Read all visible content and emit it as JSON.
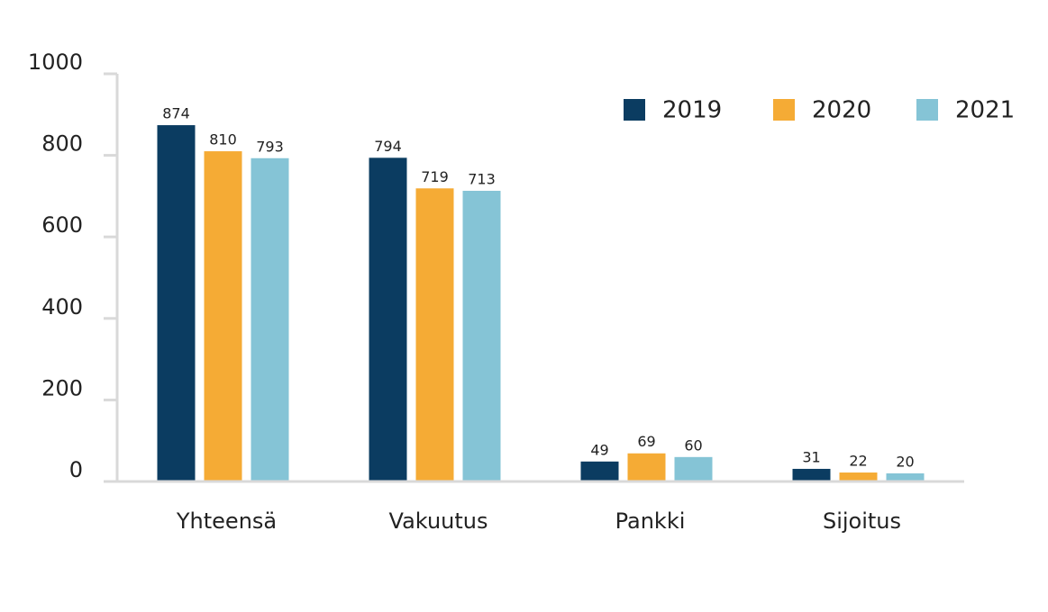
{
  "chart_data": {
    "type": "bar",
    "categories": [
      "Yhteensä",
      "Vakuutus",
      "Pankki",
      "Sijoitus"
    ],
    "series": [
      {
        "name": "2019",
        "color": "#0b3c61",
        "values": [
          874,
          794,
          49,
          31
        ]
      },
      {
        "name": "2020",
        "color": "#f5ab35",
        "values": [
          810,
          719,
          69,
          22
        ]
      },
      {
        "name": "2021",
        "color": "#85c4d6",
        "values": [
          793,
          713,
          60,
          20
        ]
      }
    ],
    "ylim": [
      0,
      1000
    ],
    "yticks": [
      0,
      200,
      400,
      600,
      800,
      1000
    ],
    "grid": false,
    "legend": "upper right"
  }
}
